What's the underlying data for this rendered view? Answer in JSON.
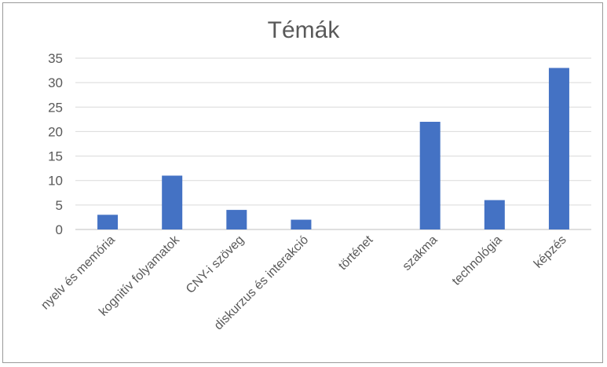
{
  "chart_data": {
    "type": "bar",
    "title": "Témák",
    "categories": [
      "nyelv és memória",
      "kognitív folyamatok",
      "CNY-i szöveg",
      "diskurzus és interakció",
      "történet",
      "szakma",
      "technológia",
      "képzés"
    ],
    "values": [
      3,
      11,
      4,
      2,
      0,
      22,
      6,
      33
    ],
    "ylim": [
      0,
      35
    ],
    "yticks": [
      0,
      5,
      10,
      15,
      20,
      25,
      30,
      35
    ],
    "grid": true,
    "bar_color": "#4472c4",
    "grid_color": "#d9d9d9"
  }
}
